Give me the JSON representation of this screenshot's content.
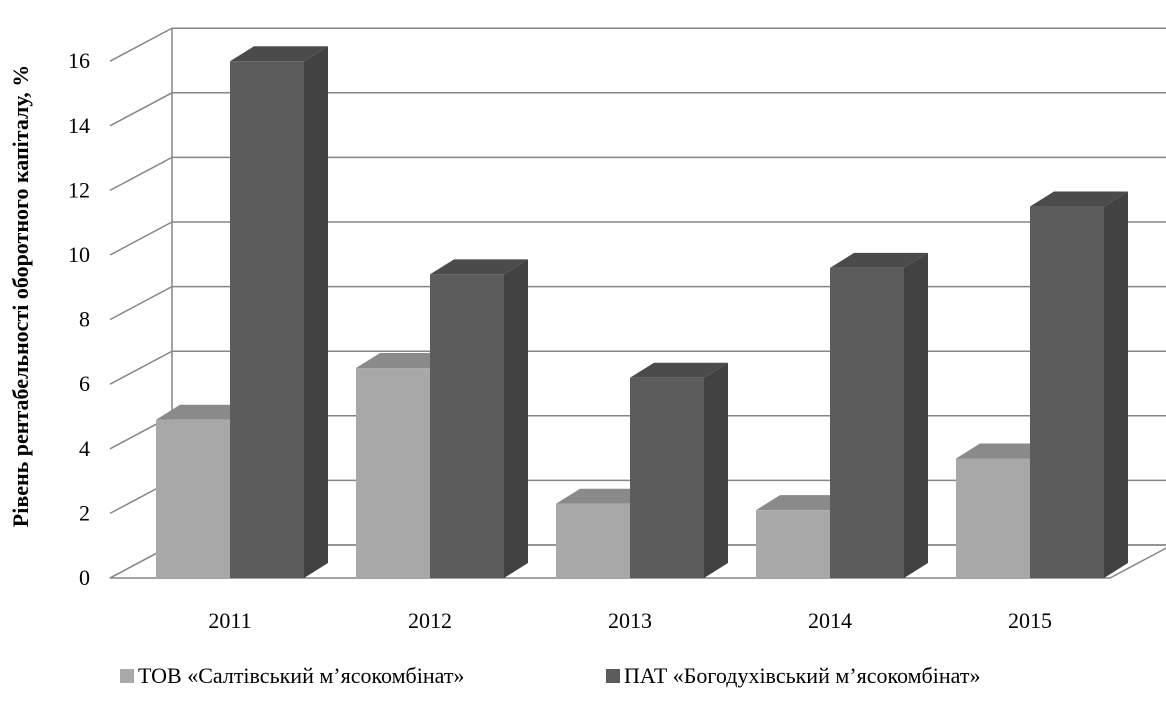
{
  "chart_data": {
    "type": "bar",
    "style": "3d-clustered-column",
    "categories": [
      "2011",
      "2012",
      "2013",
      "2014",
      "2015"
    ],
    "series": [
      {
        "name": "ТОВ «Салтівський м’ясокомбінат»",
        "values": [
          4.9,
          6.5,
          2.3,
          2.1,
          3.7
        ],
        "color": "#a8a8a8"
      },
      {
        "name": "ПАТ «Богодухівський м’ясокомбінат»",
        "values": [
          16.0,
          9.4,
          6.2,
          9.6,
          11.5
        ],
        "color": "#5c5c5c"
      }
    ],
    "xlabel": "",
    "ylabel": "Рівень рентабельності оборотного капіталу, %",
    "ylim": [
      0,
      16
    ],
    "yticks": [
      0,
      2,
      4,
      6,
      8,
      10,
      12,
      14,
      16
    ],
    "grid": true,
    "legend_position": "bottom"
  }
}
